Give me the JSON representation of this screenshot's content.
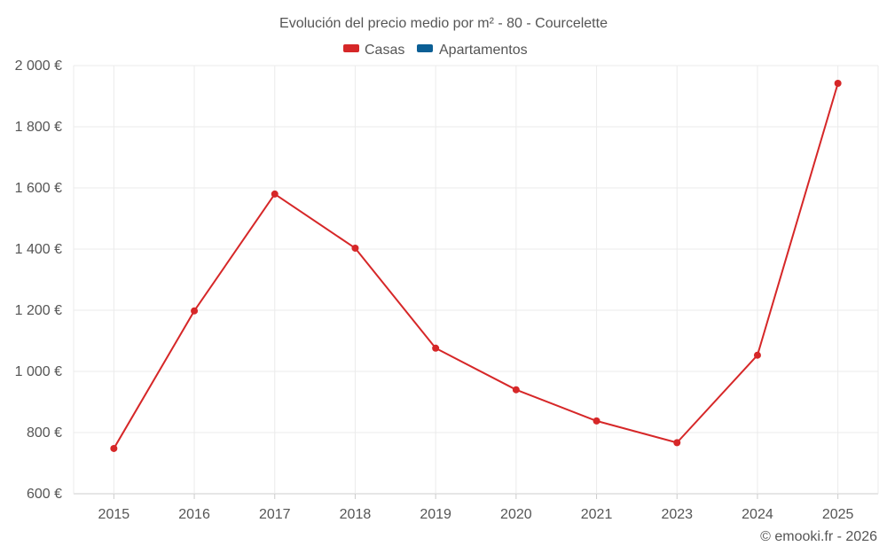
{
  "chart_data": {
    "type": "line",
    "title": "Evolución del precio medio por m² - 80 - Courcelette",
    "legend": [
      {
        "name": "Casas",
        "color": "#d62728"
      },
      {
        "name": "Apartamentos",
        "color": "#0b5f95"
      }
    ],
    "categories": [
      "2015",
      "2016",
      "2017",
      "2018",
      "2019",
      "2020",
      "2021",
      "2023",
      "2024",
      "2025"
    ],
    "series": [
      {
        "name": "Casas",
        "color": "#d62728",
        "values": [
          748,
          1198,
          1580,
          1403,
          1076,
          940,
          838,
          767,
          1053,
          1942
        ]
      }
    ],
    "ylim": [
      600,
      2000
    ],
    "yticks": [
      600,
      800,
      1000,
      1200,
      1400,
      1600,
      1800,
      2000
    ],
    "ytick_labels": [
      "600 €",
      "800 €",
      "1 000 €",
      "1 200 €",
      "1 400 €",
      "1 600 €",
      "1 800 €",
      "2 000 €"
    ],
    "credit": "© emooki.fr - 2026",
    "grid": true
  }
}
